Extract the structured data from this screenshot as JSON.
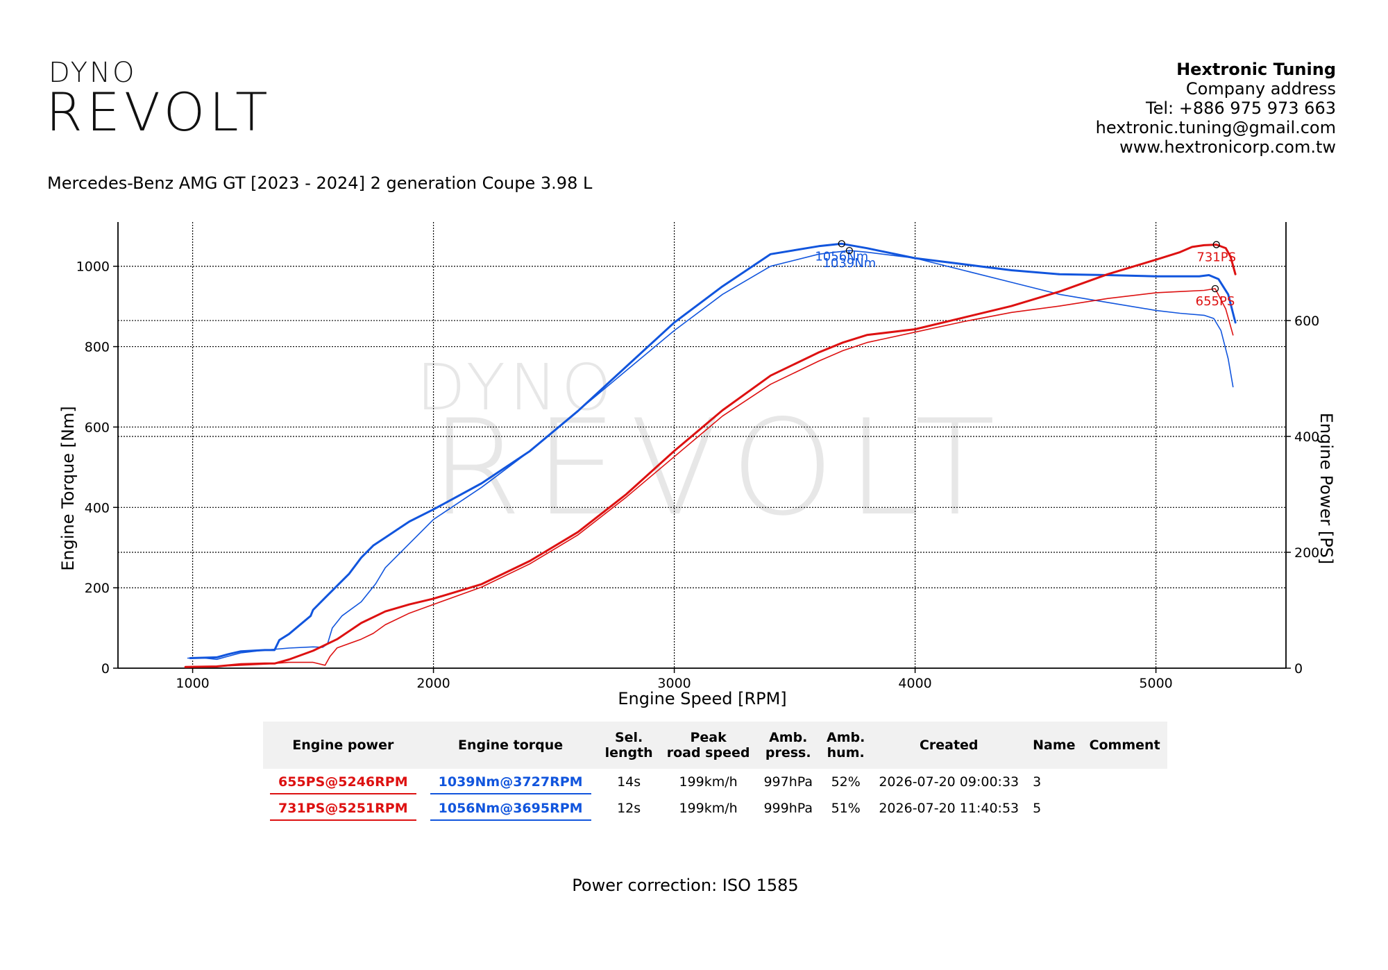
{
  "brand": {
    "line1": "DYNO",
    "line2": "REVOLT"
  },
  "company": {
    "name": "Hextronic Tuning",
    "address": "Company address",
    "tel": "Tel: +886 975 973 663",
    "email": "hextronic.tuning@gmail.com",
    "web": "www.hextronicorp.com.tw"
  },
  "vehicle": "Mercedes-Benz AMG GT [2023 - 2024] 2 generation Coupe 3.98 L",
  "colors": {
    "power": "#dd1111",
    "torque": "#1155dd",
    "grid": "#000000"
  },
  "chart_data": {
    "type": "line",
    "xlabel": "Engine Speed [RPM]",
    "ylabel": "Engine Torque [Nm]",
    "y2label": "Engine Power [PS]",
    "xlim": [
      690,
      5540
    ],
    "ylim": [
      0,
      1110
    ],
    "y2lim": [
      0,
      770
    ],
    "xticks": [
      1000,
      2000,
      3000,
      4000,
      5000
    ],
    "yticks": [
      0,
      200,
      400,
      600,
      800,
      1000
    ],
    "y2ticks": [
      0,
      200,
      400,
      600
    ],
    "grid": true,
    "series": [
      {
        "name": "1039Nm@3727RPM",
        "axis": "left",
        "color": "#1155dd",
        "width": 1.6,
        "x": [
          980,
          1050,
          1100,
          1150,
          1200,
          1300,
          1400,
          1500,
          1540,
          1560,
          1580,
          1620,
          1700,
          1760,
          1800,
          1900,
          2000,
          2200,
          2400,
          2600,
          2800,
          3000,
          3200,
          3400,
          3600,
          3727,
          3800,
          4000,
          4200,
          4400,
          4600,
          4800,
          5000,
          5100,
          5200,
          5240,
          5270,
          5300,
          5320
        ],
        "y": [
          25,
          25,
          22,
          30,
          38,
          45,
          50,
          53,
          52,
          60,
          100,
          130,
          165,
          210,
          250,
          310,
          370,
          450,
          540,
          640,
          740,
          840,
          930,
          1000,
          1030,
          1039,
          1035,
          1020,
          990,
          960,
          930,
          910,
          890,
          883,
          878,
          870,
          840,
          770,
          700
        ]
      },
      {
        "name": "1056Nm@3695RPM",
        "axis": "left",
        "color": "#1155dd",
        "width": 3,
        "x": [
          990,
          1100,
          1150,
          1200,
          1300,
          1340,
          1360,
          1400,
          1450,
          1490,
          1500,
          1550,
          1600,
          1650,
          1700,
          1750,
          1800,
          1900,
          2000,
          2200,
          2400,
          2600,
          2800,
          3000,
          3200,
          3400,
          3600,
          3695,
          3800,
          4000,
          4200,
          4400,
          4600,
          4800,
          5000,
          5100,
          5180,
          5220,
          5260,
          5300,
          5330
        ],
        "y": [
          25,
          27,
          35,
          42,
          45,
          45,
          70,
          85,
          110,
          130,
          145,
          175,
          205,
          235,
          275,
          305,
          325,
          365,
          395,
          460,
          540,
          640,
          750,
          860,
          950,
          1030,
          1050,
          1056,
          1045,
          1020,
          1005,
          990,
          980,
          978,
          975,
          975,
          975,
          978,
          968,
          930,
          860
        ]
      },
      {
        "name": "655PS@5246RPM",
        "axis": "right",
        "color": "#dd1111",
        "width": 1.6,
        "x": [
          970,
          1100,
          1200,
          1300,
          1400,
          1500,
          1550,
          1570,
          1600,
          1700,
          1750,
          1800,
          1900,
          2000,
          2200,
          2400,
          2600,
          2800,
          3000,
          3200,
          3400,
          3500,
          3600,
          3700,
          3800,
          4000,
          4200,
          4400,
          4600,
          4800,
          5000,
          5100,
          5200,
          5246,
          5290,
          5320
        ],
        "y": [
          2,
          3,
          5,
          7,
          10,
          10,
          5,
          20,
          35,
          50,
          60,
          75,
          95,
          110,
          140,
          180,
          230,
          295,
          365,
          435,
          490,
          510,
          530,
          548,
          562,
          580,
          598,
          614,
          625,
          638,
          648,
          650,
          652,
          655,
          620,
          575
        ]
      },
      {
        "name": "731PS@5251RPM",
        "axis": "right",
        "color": "#dd1111",
        "width": 3,
        "x": [
          970,
          1100,
          1200,
          1300,
          1340,
          1400,
          1500,
          1600,
          1700,
          1800,
          1900,
          2000,
          2200,
          2400,
          2600,
          2800,
          3000,
          3200,
          3400,
          3500,
          3600,
          3700,
          3800,
          4000,
          4200,
          4400,
          4600,
          4800,
          5000,
          5100,
          5150,
          5200,
          5251,
          5290,
          5310,
          5330
        ],
        "y": [
          2,
          3,
          7,
          8,
          8,
          15,
          30,
          50,
          78,
          98,
          110,
          120,
          145,
          185,
          235,
          300,
          375,
          445,
          505,
          525,
          545,
          562,
          575,
          585,
          605,
          625,
          650,
          680,
          705,
          718,
          727,
          730,
          731,
          725,
          710,
          680
        ]
      }
    ],
    "markers": [
      {
        "label": "1056Nm",
        "axis": "left",
        "x": 3695,
        "y": 1056,
        "color": "#1155dd"
      },
      {
        "label": "1039Nm",
        "axis": "left",
        "x": 3727,
        "y": 1039,
        "color": "#1155dd"
      },
      {
        "label": "731PS",
        "axis": "right",
        "x": 5251,
        "y": 731,
        "color": "#dd1111"
      },
      {
        "label": "655PS",
        "axis": "right",
        "x": 5246,
        "y": 655,
        "color": "#dd1111"
      }
    ]
  },
  "results_table": {
    "headers": [
      "Engine power",
      "Engine torque",
      "Sel.\nlength",
      "Peak\nroad speed",
      "Amb.\npress.",
      "Amb.\nhum.",
      "Created",
      "Name",
      "Comment"
    ],
    "rows": [
      {
        "power": "655PS@5246RPM",
        "torque": "1039Nm@3727RPM",
        "length": "14s",
        "speed": "199km/h",
        "press": "997hPa",
        "hum": "52%",
        "created": "2026-07-20 09:00:33",
        "name": "3",
        "comment": ""
      },
      {
        "power": "731PS@5251RPM",
        "torque": "1056Nm@3695RPM",
        "length": "12s",
        "speed": "199km/h",
        "press": "999hPa",
        "hum": "51%",
        "created": "2026-07-20 11:40:53",
        "name": "5",
        "comment": ""
      }
    ]
  },
  "footnote": "Power correction: ISO 1585"
}
